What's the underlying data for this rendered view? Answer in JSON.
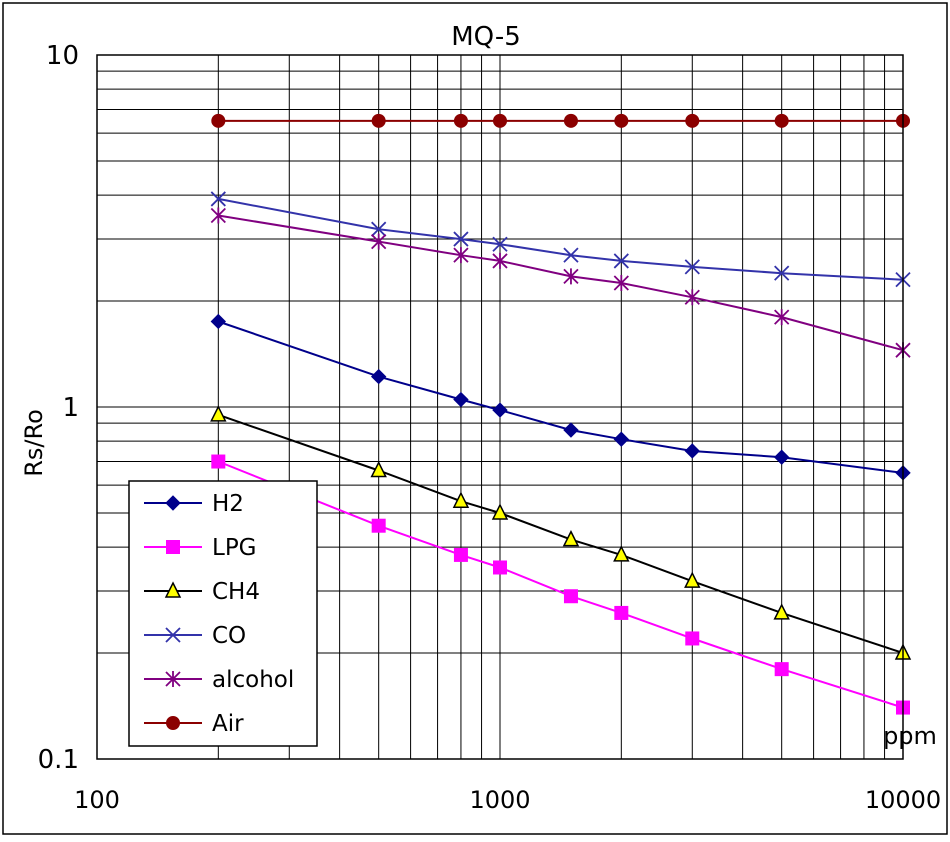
{
  "chart_data": {
    "type": "line",
    "title": "MQ-5",
    "xlabel": "",
    "x_unit": "ppm",
    "ylabel": "Rs/Ro",
    "x_scale": "log",
    "y_scale": "log",
    "xlim": [
      100,
      10000
    ],
    "ylim": [
      0.1,
      10
    ],
    "x_ticks": [
      "100",
      "1000",
      "10000"
    ],
    "y_ticks": [
      "10",
      "1",
      "0.1"
    ],
    "grid": true,
    "legend_position": "lower-left",
    "x": [
      200,
      500,
      800,
      1000,
      1500,
      2000,
      3000,
      5000,
      10000
    ],
    "series": [
      {
        "name": "H2",
        "color": "#00008B",
        "marker": "diamond",
        "values": [
          1.75,
          1.22,
          1.05,
          0.98,
          0.86,
          0.81,
          0.75,
          0.72,
          0.65
        ]
      },
      {
        "name": "LPG",
        "color": "#FF00FF",
        "marker": "square",
        "values": [
          0.7,
          0.46,
          0.38,
          0.35,
          0.29,
          0.26,
          0.22,
          0.18,
          0.14
        ]
      },
      {
        "name": "CH4",
        "color": "#000000",
        "marker": "triangle",
        "marker_fill": "#FFFF00",
        "values": [
          0.95,
          0.66,
          0.54,
          0.5,
          0.42,
          0.38,
          0.32,
          0.26,
          0.2
        ]
      },
      {
        "name": "CO",
        "color": "#3333AA",
        "marker": "x",
        "values": [
          3.9,
          3.2,
          3.0,
          2.9,
          2.7,
          2.6,
          2.5,
          2.4,
          2.3
        ]
      },
      {
        "name": "alcohol",
        "color": "#800080",
        "marker": "star",
        "values": [
          3.5,
          2.95,
          2.7,
          2.6,
          2.35,
          2.25,
          2.05,
          1.8,
          1.45
        ]
      },
      {
        "name": "Air",
        "color": "#8B0000",
        "marker": "circle",
        "values": [
          6.5,
          6.5,
          6.5,
          6.5,
          6.5,
          6.5,
          6.5,
          6.5,
          6.5
        ]
      }
    ]
  }
}
